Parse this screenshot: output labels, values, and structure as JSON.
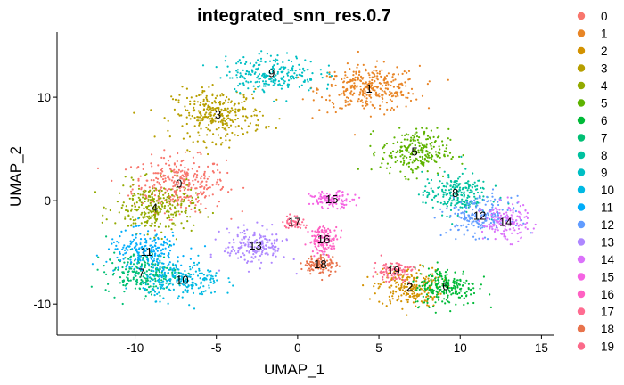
{
  "chart_data": {
    "type": "scatter",
    "title": "integrated_snn_res.0.7",
    "xlabel": "UMAP_1",
    "ylabel": "UMAP_2",
    "xlim": [
      -14.8,
      15.8
    ],
    "ylim": [
      -13,
      16.3
    ],
    "xticks": [
      -10,
      -5,
      0,
      5,
      10,
      15
    ],
    "yticks": [
      -10,
      0,
      10
    ],
    "grid": false,
    "legend_position": "right",
    "legend": [
      {
        "name": "0",
        "color": "#F8766D"
      },
      {
        "name": "1",
        "color": "#E88526"
      },
      {
        "name": "2",
        "color": "#D39200"
      },
      {
        "name": "3",
        "color": "#B79F00"
      },
      {
        "name": "4",
        "color": "#93AA00"
      },
      {
        "name": "5",
        "color": "#5EB300"
      },
      {
        "name": "6",
        "color": "#00BA38"
      },
      {
        "name": "7",
        "color": "#00BF74"
      },
      {
        "name": "8",
        "color": "#00C19F"
      },
      {
        "name": "9",
        "color": "#00BFC4"
      },
      {
        "name": "10",
        "color": "#00B9E3"
      },
      {
        "name": "11",
        "color": "#00ADFA"
      },
      {
        "name": "12",
        "color": "#619CFF"
      },
      {
        "name": "13",
        "color": "#AE87FF"
      },
      {
        "name": "14",
        "color": "#DB72FB"
      },
      {
        "name": "15",
        "color": "#F564E3"
      },
      {
        "name": "16",
        "color": "#FF61C3"
      },
      {
        "name": "17",
        "color": "#FF6C91"
      },
      {
        "name": "18",
        "color": "#E8734C"
      },
      {
        "name": "19",
        "color": "#FB6A8A"
      }
    ],
    "clusters": [
      {
        "name": "0",
        "x": -7.3,
        "y": 1.6,
        "spread": [
          2.6,
          2.4
        ],
        "n": 320,
        "color": "#F8766D"
      },
      {
        "name": "1",
        "x": 4.4,
        "y": 10.8,
        "spread": [
          2.8,
          2.0
        ],
        "n": 330,
        "color": "#E88526"
      },
      {
        "name": "2",
        "x": 6.9,
        "y": -8.4,
        "spread": [
          1.8,
          1.7
        ],
        "n": 220,
        "color": "#D39200"
      },
      {
        "name": "3",
        "x": -4.9,
        "y": 8.3,
        "spread": [
          2.5,
          2.2
        ],
        "n": 300,
        "color": "#B79F00"
      },
      {
        "name": "4",
        "x": -8.8,
        "y": -0.7,
        "spread": [
          2.2,
          2.2
        ],
        "n": 280,
        "color": "#93AA00"
      },
      {
        "name": "5",
        "x": 7.2,
        "y": 4.7,
        "spread": [
          1.9,
          2.0
        ],
        "n": 240,
        "color": "#5EB300"
      },
      {
        "name": "6",
        "x": 9.1,
        "y": -8.3,
        "spread": [
          1.8,
          1.7
        ],
        "n": 220,
        "color": "#00BA38"
      },
      {
        "name": "7",
        "x": -9.6,
        "y": -7.0,
        "spread": [
          2.0,
          1.8
        ],
        "n": 220,
        "color": "#00BF74"
      },
      {
        "name": "8",
        "x": 9.7,
        "y": 0.7,
        "spread": [
          1.8,
          1.8
        ],
        "n": 220,
        "color": "#00C19F"
      },
      {
        "name": "9",
        "x": -1.6,
        "y": 12.3,
        "spread": [
          2.6,
          1.6
        ],
        "n": 240,
        "color": "#00BFC4"
      },
      {
        "name": "10",
        "x": -7.1,
        "y": -7.7,
        "spread": [
          2.2,
          1.6
        ],
        "n": 220,
        "color": "#00B9E3"
      },
      {
        "name": "11",
        "x": -9.3,
        "y": -5.0,
        "spread": [
          2.2,
          1.8
        ],
        "n": 220,
        "color": "#00ADFA"
      },
      {
        "name": "12",
        "x": 11.2,
        "y": -1.5,
        "spread": [
          1.8,
          1.7
        ],
        "n": 200,
        "color": "#619CFF"
      },
      {
        "name": "13",
        "x": -2.6,
        "y": -4.4,
        "spread": [
          1.8,
          1.6
        ],
        "n": 180,
        "color": "#AE87FF"
      },
      {
        "name": "14",
        "x": 12.8,
        "y": -2.1,
        "spread": [
          1.3,
          1.6
        ],
        "n": 150,
        "color": "#DB72FB"
      },
      {
        "name": "15",
        "x": 2.1,
        "y": 0.1,
        "spread": [
          1.2,
          0.7
        ],
        "n": 110,
        "color": "#F564E3"
      },
      {
        "name": "16",
        "x": 1.6,
        "y": -3.8,
        "spread": [
          0.8,
          1.2
        ],
        "n": 130,
        "color": "#FF61C3"
      },
      {
        "name": "17",
        "x": -0.2,
        "y": -2.1,
        "spread": [
          0.6,
          0.6
        ],
        "n": 50,
        "color": "#FF6C91"
      },
      {
        "name": "18",
        "x": 1.4,
        "y": -6.2,
        "spread": [
          0.9,
          0.9
        ],
        "n": 110,
        "color": "#E8734C"
      },
      {
        "name": "19",
        "x": 5.9,
        "y": -6.8,
        "spread": [
          1.1,
          0.9
        ],
        "n": 100,
        "color": "#FB6A8A"
      }
    ]
  }
}
